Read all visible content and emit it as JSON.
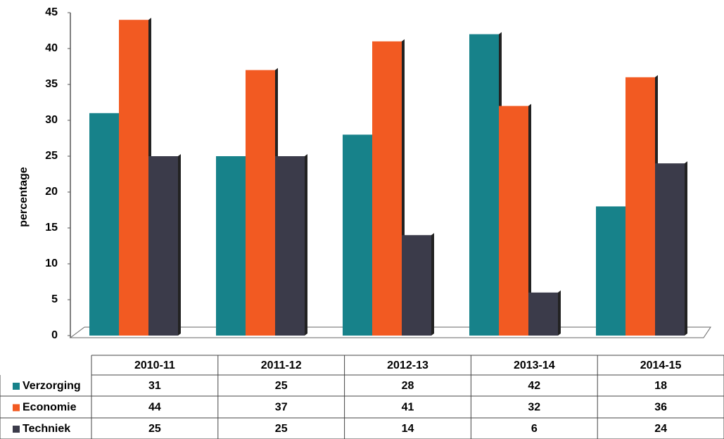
{
  "chart_data": {
    "type": "bar",
    "y_label": "percentage",
    "categories": [
      "2010-11",
      "2011-12",
      "2012-13",
      "2013-14",
      "2014-15"
    ],
    "series": [
      {
        "name": "Verzorging",
        "color": "#17828a",
        "values": [
          31,
          25,
          28,
          42,
          18
        ]
      },
      {
        "name": "Economie",
        "color": "#f25a22",
        "values": [
          44,
          37,
          41,
          32,
          36
        ]
      },
      {
        "name": "Techniek",
        "color": "#3b3b4a",
        "values": [
          25,
          25,
          14,
          6,
          24
        ]
      }
    ],
    "ylim": [
      0,
      45
    ],
    "yticks": [
      0,
      5,
      10,
      15,
      20,
      25,
      30,
      35,
      40,
      45
    ],
    "grid": false
  }
}
